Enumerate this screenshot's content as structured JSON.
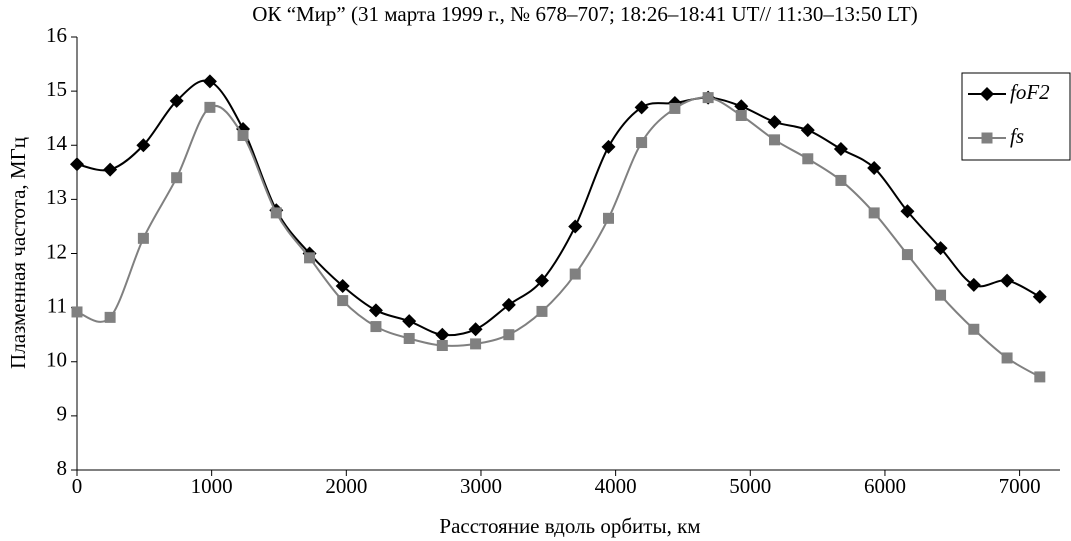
{
  "chart_data": {
    "type": "line",
    "title": "ОК “Мир” (31 марта 1999 г., № 678–707; 18:26–18:41 UT// 11:30–13:50 LT)",
    "xlabel": "Расстояние вдоль орбиты, км",
    "ylabel": "Плазменная частота, МГц",
    "x": [
      0,
      246,
      493,
      740,
      987,
      1233,
      1480,
      1727,
      1973,
      2220,
      2467,
      2713,
      2960,
      3207,
      3453,
      3700,
      3947,
      4193,
      4440,
      4687,
      4933,
      5180,
      5427,
      5673,
      5920,
      6167,
      6413,
      6660,
      6907,
      7150
    ],
    "series": [
      {
        "name": "foF2",
        "color": "#000000",
        "marker": "diamond",
        "values": [
          13.65,
          13.55,
          14.0,
          14.82,
          15.18,
          14.3,
          12.8,
          12.0,
          11.4,
          10.95,
          10.75,
          10.5,
          10.6,
          11.05,
          11.5,
          12.5,
          13.97,
          14.7,
          14.78,
          14.88,
          14.72,
          14.43,
          14.28,
          13.93,
          13.58,
          12.78,
          12.1,
          11.42,
          11.5,
          11.2
        ]
      },
      {
        "name": "fs",
        "color": "#808080",
        "marker": "square",
        "values": [
          10.92,
          10.82,
          12.28,
          13.4,
          14.7,
          14.18,
          12.75,
          11.92,
          11.13,
          10.65,
          10.43,
          10.3,
          10.33,
          10.5,
          10.93,
          11.62,
          12.65,
          14.05,
          14.68,
          14.88,
          14.55,
          14.1,
          13.75,
          13.35,
          12.75,
          11.98,
          11.23,
          10.6,
          10.07,
          9.72
        ]
      }
    ],
    "xlim": [
      0,
      7300
    ],
    "xticks": [
      0,
      1000,
      2000,
      3000,
      4000,
      5000,
      6000,
      7000
    ],
    "ylim": [
      8,
      16
    ],
    "yticks": [
      8,
      9,
      10,
      11,
      12,
      13,
      14,
      15,
      16
    ],
    "legend": "right"
  }
}
